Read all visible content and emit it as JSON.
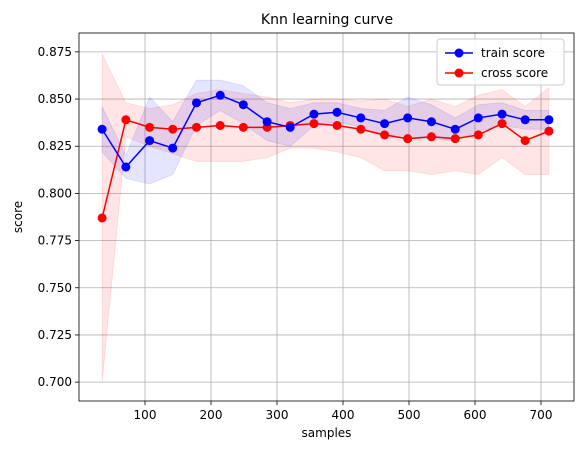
{
  "chart_data": {
    "type": "line",
    "title": "Knn learning curve",
    "xlabel": "samples",
    "ylabel": "score",
    "xlim": [
      0,
      750
    ],
    "ylim": [
      0.69,
      0.885
    ],
    "xticks": [
      100,
      200,
      300,
      400,
      500,
      600,
      700
    ],
    "yticks": [
      0.7,
      0.725,
      0.75,
      0.775,
      0.8,
      0.825,
      0.85,
      0.875
    ],
    "grid": true,
    "legend_position": "top-right",
    "x": [
      35,
      71,
      107,
      142,
      178,
      214,
      249,
      285,
      320,
      356,
      391,
      427,
      463,
      498,
      534,
      570,
      605,
      641,
      676,
      712
    ],
    "series": [
      {
        "name": "train score",
        "color": "#0000ff",
        "values": [
          0.834,
          0.814,
          0.828,
          0.824,
          0.848,
          0.852,
          0.847,
          0.838,
          0.835,
          0.842,
          0.843,
          0.84,
          0.837,
          0.84,
          0.838,
          0.834,
          0.84,
          0.842,
          0.839,
          0.839
        ],
        "band_upper": [
          0.846,
          0.82,
          0.851,
          0.838,
          0.86,
          0.86,
          0.857,
          0.848,
          0.845,
          0.848,
          0.848,
          0.845,
          0.844,
          0.851,
          0.847,
          0.84,
          0.847,
          0.848,
          0.844,
          0.844
        ],
        "band_lower": [
          0.822,
          0.808,
          0.805,
          0.81,
          0.836,
          0.844,
          0.837,
          0.828,
          0.825,
          0.836,
          0.838,
          0.835,
          0.83,
          0.829,
          0.829,
          0.828,
          0.833,
          0.836,
          0.834,
          0.834
        ]
      },
      {
        "name": "cross score",
        "color": "#ff0000",
        "values": [
          0.787,
          0.839,
          0.835,
          0.834,
          0.835,
          0.836,
          0.835,
          0.835,
          0.836,
          0.837,
          0.836,
          0.834,
          0.831,
          0.829,
          0.83,
          0.829,
          0.831,
          0.837,
          0.828,
          0.833
        ],
        "band_upper": [
          0.874,
          0.848,
          0.845,
          0.847,
          0.853,
          0.855,
          0.853,
          0.851,
          0.848,
          0.85,
          0.85,
          0.849,
          0.85,
          0.846,
          0.85,
          0.846,
          0.852,
          0.855,
          0.846,
          0.856
        ],
        "band_lower": [
          0.7,
          0.83,
          0.825,
          0.821,
          0.817,
          0.817,
          0.817,
          0.819,
          0.824,
          0.824,
          0.822,
          0.819,
          0.812,
          0.812,
          0.81,
          0.812,
          0.81,
          0.819,
          0.81,
          0.81
        ]
      }
    ]
  }
}
